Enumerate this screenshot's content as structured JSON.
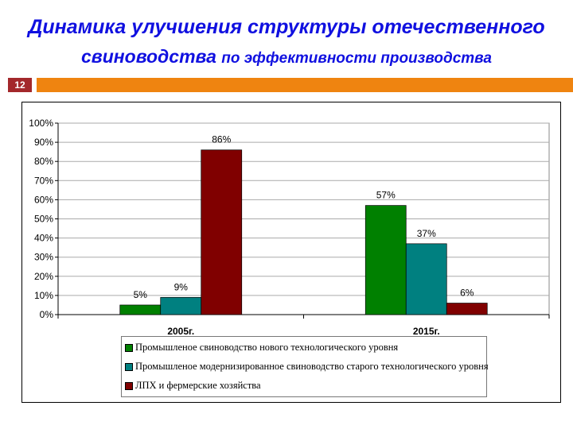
{
  "slide": {
    "title_line1": "Динамика улучшения структуры отечественного",
    "title_line2_big": "свиноводства",
    "title_line2_small": "по эффективности производства",
    "number": "12"
  },
  "chart_data": {
    "type": "bar",
    "categories": [
      "2005г.",
      "2015г."
    ],
    "series": [
      {
        "name": "Промышленое свиноводство нового технологического уровня",
        "color": "#008000",
        "values": [
          5,
          57
        ],
        "labels": [
          "5%",
          "57%"
        ]
      },
      {
        "name": "Промышленое модернизированное свиноводство старого технологического уровня",
        "color": "#008080",
        "values": [
          9,
          37
        ],
        "labels": [
          "9%",
          "37%"
        ]
      },
      {
        "name": "ЛПХ и фермерские хозяйства",
        "color": "#800000",
        "values": [
          86,
          6
        ],
        "labels": [
          "86%",
          "6%"
        ]
      }
    ],
    "ylim": [
      0,
      100
    ],
    "yticks": [
      "0%",
      "10%",
      "20%",
      "30%",
      "40%",
      "50%",
      "60%",
      "70%",
      "80%",
      "90%",
      "100%"
    ],
    "grid": true,
    "legend": "bottom"
  }
}
